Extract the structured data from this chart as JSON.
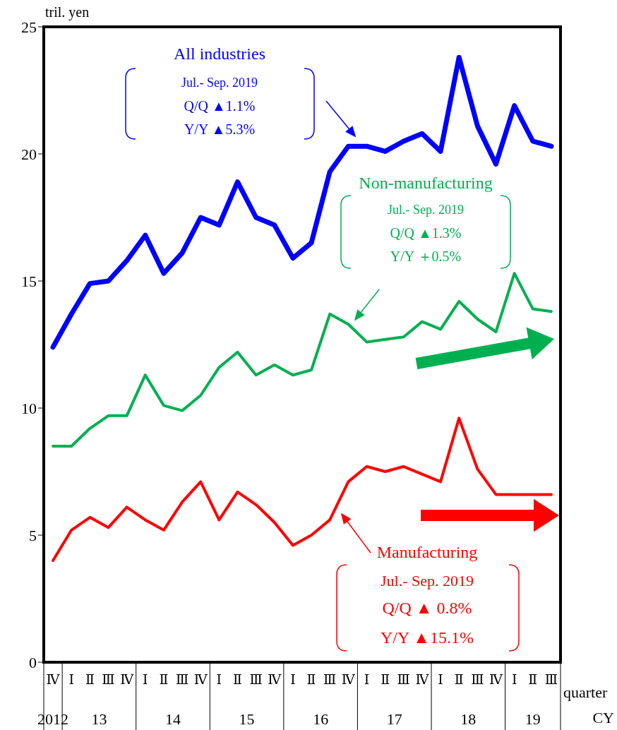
{
  "chart_data": {
    "type": "line",
    "ylabel": "tril. yen",
    "xlabel": "quarter",
    "categories": [
      "Ⅳ",
      "Ⅰ",
      "Ⅱ",
      "Ⅲ",
      "Ⅳ",
      "Ⅰ",
      "Ⅱ",
      "Ⅲ",
      "Ⅳ",
      "Ⅰ",
      "Ⅱ",
      "Ⅲ",
      "Ⅳ",
      "Ⅰ",
      "Ⅱ",
      "Ⅲ",
      "Ⅳ",
      "Ⅰ",
      "Ⅱ",
      "Ⅲ",
      "Ⅳ",
      "Ⅰ",
      "Ⅱ",
      "Ⅲ",
      "Ⅳ",
      "Ⅰ",
      "Ⅱ",
      "Ⅲ"
    ],
    "series": [
      {
        "name": "All industries",
        "color": "#0000ff",
        "values": [
          12.4,
          13.7,
          14.9,
          15.0,
          15.8,
          16.8,
          15.3,
          16.1,
          17.5,
          17.2,
          18.9,
          17.5,
          17.2,
          15.9,
          16.5,
          19.3,
          20.3,
          20.3,
          20.1,
          20.5,
          20.8,
          20.1,
          23.8,
          21.1,
          19.6,
          21.9,
          20.5,
          20.3
        ]
      },
      {
        "name": "Non-manufacturing",
        "color": "#00b050",
        "values": [
          8.5,
          8.5,
          9.2,
          9.7,
          9.7,
          11.3,
          10.1,
          9.9,
          10.5,
          11.6,
          12.2,
          11.3,
          11.7,
          11.3,
          11.5,
          13.7,
          13.3,
          12.6,
          12.7,
          12.8,
          13.4,
          13.1,
          14.2,
          13.5,
          13.0,
          15.3,
          13.9,
          13.8
        ]
      },
      {
        "name": "Manufacturing",
        "color": "#ff0000",
        "values": [
          4.0,
          5.2,
          5.7,
          5.3,
          6.1,
          5.6,
          5.2,
          6.3,
          7.1,
          5.6,
          6.7,
          6.2,
          5.5,
          4.6,
          5.0,
          5.6,
          7.1,
          7.7,
          7.5,
          7.7,
          7.4,
          7.1,
          9.6,
          7.6,
          6.6,
          6.6,
          6.6,
          6.6
        ]
      }
    ],
    "ylim": [
      0,
      25
    ],
    "yticks": [
      0,
      5,
      10,
      15,
      20,
      25
    ],
    "grid": false,
    "legend": false,
    "marker": "none",
    "line_style": "solid",
    "annotations": [
      "Jul.- Sep. 2019",
      "Q/Q ▲1.1%",
      "Y/Y ▲5.3%",
      "Jul.- Sep. 2019",
      "Q/Q ▲1.3%",
      "Y/Y ＋0.5%",
      "Jul.- Sep. 2019",
      "Q/Q ▲ 0.8%",
      "Y/Y ▲15.1%",
      "CY",
      "2012",
      "13",
      "14",
      "15",
      "16",
      "17",
      "18",
      "19"
    ]
  }
}
